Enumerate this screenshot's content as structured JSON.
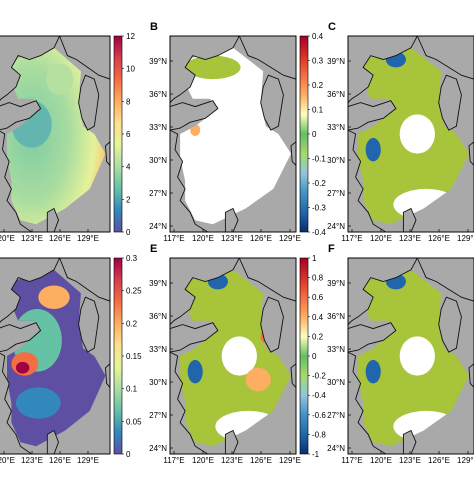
{
  "panels": [
    {
      "letter": "",
      "lat_labels": [],
      "lon_labels": [
        "120°E",
        "123°E",
        "126°E",
        "129°E"
      ],
      "colorbar": {
        "ticks": [
          "12",
          "10",
          "8",
          "6",
          "4",
          "2",
          "0"
        ],
        "colormap": "spectral"
      }
    },
    {
      "letter": "B",
      "lat_labels": [
        "39°N",
        "36°N",
        "33°N",
        "30°N",
        "27°N",
        "24°N"
      ],
      "lon_labels": [
        "117°E",
        "120°E",
        "123°E",
        "126°E",
        "129°E"
      ],
      "colorbar": {
        "ticks": [
          "0.4",
          "0.3",
          "0.2",
          "0.1",
          "0",
          "-0.1",
          "-0.2",
          "-0.3",
          "-0.4"
        ],
        "colormap": "diverging"
      }
    },
    {
      "letter": "C",
      "lat_labels": [
        "39°N",
        "36°N",
        "33°N",
        "30°N",
        "27°N",
        "24°N"
      ],
      "lon_labels": [
        "117°E",
        "120°E",
        "123°E",
        "126°E",
        "129°E"
      ],
      "colorbar": null
    },
    {
      "letter": "",
      "lat_labels": [],
      "lon_labels": [
        "120°E",
        "123°E",
        "126°E",
        "129°E"
      ],
      "colorbar": {
        "ticks": [
          "0.3",
          "0.25",
          "0.2",
          "0.15",
          "0.1",
          "0.05",
          "0"
        ],
        "colormap": "spectral"
      }
    },
    {
      "letter": "E",
      "lat_labels": [
        "39°N",
        "36°N",
        "33°N",
        "30°N",
        "27°N",
        "24°N"
      ],
      "lon_labels": [
        "117°E",
        "120°E",
        "123°E",
        "126°E",
        "129°E"
      ],
      "colorbar": {
        "ticks": [
          "1",
          "0.8",
          "0.6",
          "0.4",
          "0.2",
          "0",
          "-0.2",
          "-0.4",
          "-0.6",
          "-0.8",
          "-1"
        ],
        "colormap": "diverging"
      }
    },
    {
      "letter": "F",
      "lat_labels": [
        "39°N",
        "36°N",
        "33°N",
        "30°N",
        "27°N",
        "24°N"
      ],
      "lon_labels": [
        "117°E",
        "120°E",
        "123°E",
        "126°E",
        "129°E"
      ],
      "colorbar": null
    }
  ],
  "colors": {
    "land": "#a9a9a9",
    "coast": "#111111",
    "sea_unmasked": "#ffffff",
    "olive": "#a8c43a",
    "spectral": [
      "#5e4fa2",
      "#3288bd",
      "#66c2a5",
      "#abdda4",
      "#e6f598",
      "#fee08b",
      "#fdae61",
      "#f46d43",
      "#d53e4f",
      "#9e0142"
    ],
    "diverging": [
      "#08306b",
      "#2166ac",
      "#4393c3",
      "#92c5de",
      "#a6d96a",
      "#66bd63",
      "#ffffbf",
      "#fdae61",
      "#f46d43",
      "#d73027",
      "#a50026"
    ]
  }
}
